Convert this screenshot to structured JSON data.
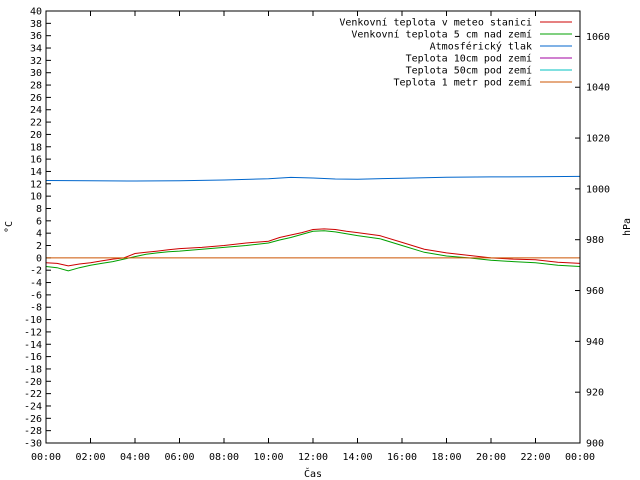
{
  "chart_data": {
    "type": "line",
    "xlabel": "Čas",
    "ylabel": "°C",
    "y2label": "hPa",
    "x_ticks": [
      "00:00",
      "02:00",
      "04:00",
      "06:00",
      "08:00",
      "10:00",
      "12:00",
      "14:00",
      "16:00",
      "18:00",
      "20:00",
      "22:00",
      "00:00"
    ],
    "xlim_hours": [
      0,
      24
    ],
    "ylim": [
      -30,
      40
    ],
    "y_tick_step": 2,
    "y2lim": [
      900,
      1070
    ],
    "y2_ticks": [
      900,
      920,
      940,
      960,
      980,
      1000,
      1020,
      1040,
      1060
    ],
    "legend_position": "top-right",
    "series": [
      {
        "name": "Venkovní teplota v meteo stanici",
        "color": "#cc0000",
        "axis": "y",
        "x": [
          0,
          0.5,
          1,
          1.5,
          2,
          2.5,
          3,
          3.5,
          4,
          4.5,
          5,
          5.5,
          6,
          7,
          8,
          9,
          10,
          10.5,
          11,
          11.5,
          12,
          12.5,
          13,
          13.5,
          14,
          15,
          16,
          17,
          18,
          19,
          20,
          21,
          22,
          23,
          24
        ],
        "values": [
          -0.8,
          -0.9,
          -1.3,
          -1.0,
          -0.8,
          -0.5,
          -0.2,
          0.0,
          0.7,
          0.9,
          1.1,
          1.3,
          1.5,
          1.7,
          2.0,
          2.4,
          2.7,
          3.3,
          3.7,
          4.1,
          4.6,
          4.7,
          4.6,
          4.3,
          4.1,
          3.6,
          2.5,
          1.4,
          0.8,
          0.4,
          0.0,
          -0.2,
          -0.3,
          -0.7,
          -0.9
        ]
      },
      {
        "name": "Venkovní teplota 5 cm nad zemí",
        "color": "#00a000",
        "axis": "y",
        "x": [
          0,
          0.5,
          1,
          1.5,
          2,
          2.5,
          3,
          3.5,
          4,
          4.5,
          5,
          5.5,
          6,
          7,
          8,
          9,
          10,
          10.5,
          11,
          11.5,
          12,
          12.5,
          13,
          13.5,
          14,
          15,
          16,
          17,
          18,
          19,
          20,
          21,
          22,
          23,
          24
        ],
        "values": [
          -1.4,
          -1.6,
          -2.1,
          -1.6,
          -1.2,
          -0.9,
          -0.6,
          -0.2,
          0.2,
          0.6,
          0.8,
          1.0,
          1.1,
          1.4,
          1.7,
          2.0,
          2.4,
          2.9,
          3.3,
          3.8,
          4.3,
          4.4,
          4.2,
          3.9,
          3.6,
          3.1,
          2.0,
          0.9,
          0.3,
          0.0,
          -0.4,
          -0.6,
          -0.8,
          -1.2,
          -1.4
        ]
      },
      {
        "name": "Atmosférický tlak",
        "color": "#0066cc",
        "axis": "y2",
        "x": [
          0,
          2,
          4,
          6,
          8,
          10,
          11,
          12,
          13,
          14,
          16,
          18,
          20,
          22,
          24
        ],
        "values": [
          1003.3,
          1003.2,
          1003.1,
          1003.2,
          1003.5,
          1004.0,
          1004.5,
          1004.3,
          1003.9,
          1003.8,
          1004.2,
          1004.6,
          1004.7,
          1004.8,
          1004.9
        ]
      },
      {
        "name": "Teplota 10cm pod zemí",
        "color": "#a000a0",
        "axis": "y",
        "x": [],
        "values": []
      },
      {
        "name": "Teplota 50cm pod zemí",
        "color": "#00c0c0",
        "axis": "y",
        "x": [],
        "values": []
      },
      {
        "name": "Teplota 1 metr pod zemí",
        "color": "#cc5500",
        "axis": "y",
        "x": [
          0,
          24
        ],
        "values": [
          0,
          0
        ]
      }
    ]
  }
}
